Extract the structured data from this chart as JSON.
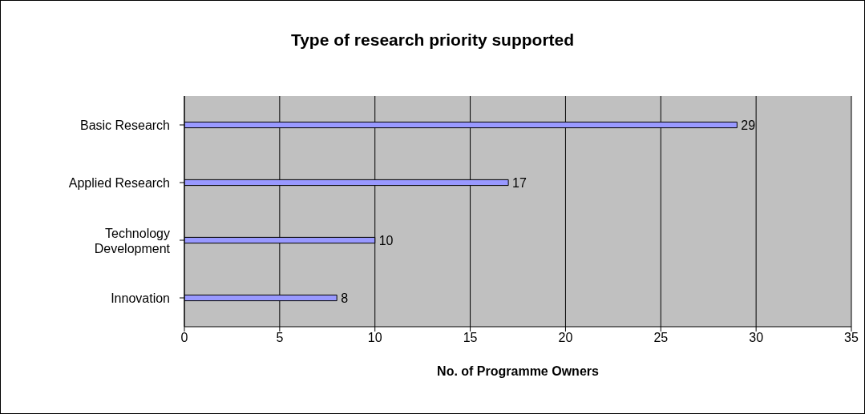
{
  "chart_data": {
    "type": "bar",
    "orientation": "horizontal",
    "title": "Type of research priority supported",
    "xlabel": "No. of Programme Owners",
    "categories": [
      "Basic Research",
      "Applied Research",
      "Technology Development",
      "Innovation"
    ],
    "values": [
      29,
      17,
      10,
      8
    ],
    "color": "#9999ff",
    "xlim": [
      0,
      35
    ],
    "xticks": [
      0,
      5,
      10,
      15,
      20,
      25,
      30,
      35
    ],
    "grid": "x",
    "data_labels": true
  }
}
